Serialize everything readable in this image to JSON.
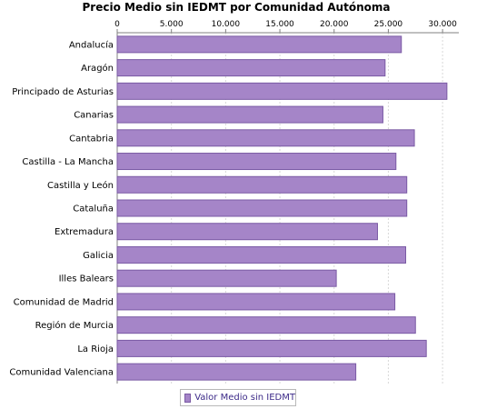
{
  "chart_data": {
    "type": "bar",
    "orientation": "horizontal",
    "title": "Precio Medio sin IEDMT por Comunidad Autónoma",
    "categories": [
      "Andalucía",
      "Aragón",
      "Principado de Asturias",
      "Canarias",
      "Cantabria",
      "Castilla - La Mancha",
      "Castilla y León",
      "Cataluña",
      "Extremadura",
      "Galicia",
      "Illes Balears",
      "Comunidad de Madrid",
      "Región de Murcia",
      "La Rioja",
      "Comunidad Valenciana"
    ],
    "series": [
      {
        "name": "Valor Medio sin IEDMT",
        "values": [
          26200,
          24700,
          30400,
          24500,
          27400,
          25700,
          26700,
          26700,
          24000,
          26600,
          20200,
          25600,
          27500,
          28500,
          22000
        ]
      }
    ],
    "xlim": [
      0,
      31500
    ],
    "ticks": [
      0,
      5000,
      10000,
      15000,
      20000,
      25000,
      30000
    ],
    "tick_labels": [
      "0",
      "5.000",
      "10.000",
      "15.000",
      "20.000",
      "25.000",
      "30.000"
    ],
    "grid": true,
    "legend_position": "bottom",
    "colors": {
      "bar_fill": "#a585c8",
      "bar_stroke": "#7a5aa4",
      "grid": "#d8d8d8",
      "axis": "#808080",
      "legend_text": "#3c2a88"
    }
  }
}
